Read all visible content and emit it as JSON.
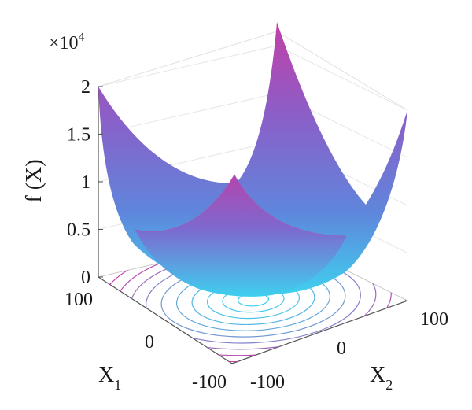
{
  "chart_data": {
    "type": "surface",
    "function": "f(X) = X1^2 + X2^2",
    "x1": {
      "label": "X",
      "subscript": "1",
      "range": [
        -100,
        100
      ],
      "ticks": [
        "-100",
        "0",
        "100"
      ]
    },
    "x2": {
      "label": "X",
      "subscript": "2",
      "range": [
        -100,
        100
      ],
      "ticks": [
        "-100",
        "0",
        "100"
      ]
    },
    "z": {
      "label": "f (X)",
      "range": [
        0,
        20000
      ],
      "ticks": [
        "0",
        "0.5",
        "1",
        "1.5",
        "2"
      ],
      "multiplier": "×10",
      "multiplier_exponent": "4"
    },
    "surface": {
      "corners": [
        {
          "x1": -100,
          "x2": -100,
          "z": 20000
        },
        {
          "x1": -100,
          "x2": 100,
          "z": 20000
        },
        {
          "x1": 100,
          "x2": -100,
          "z": 20000
        },
        {
          "x1": 100,
          "x2": 100,
          "z": 20000
        }
      ],
      "minimum": {
        "x1": 0,
        "x2": 0,
        "z": 0
      }
    },
    "contours": {
      "levels": 10,
      "projected_on_floor": true
    },
    "grid": true,
    "colors": {
      "low": "#3fd0ef",
      "mid": "#6a6fd4",
      "high": "#c33fa8"
    }
  }
}
